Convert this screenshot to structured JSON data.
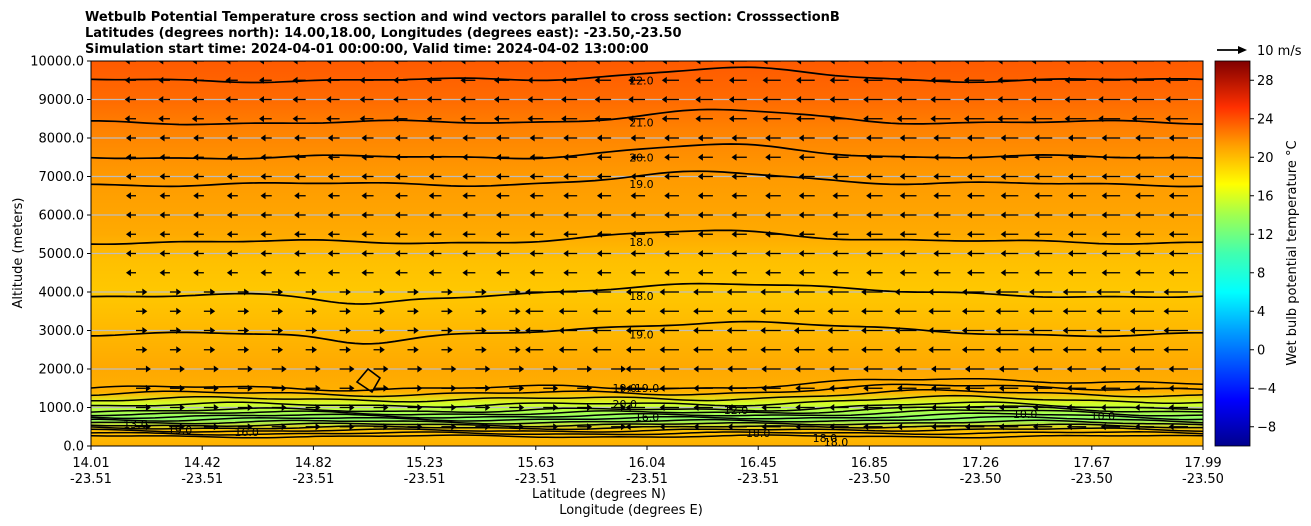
{
  "chart_data": {
    "type": "contour",
    "title_lines": [
      "Wetbulb Potential Temperature cross section and wind vectors parallel to cross section: CrosssectionB",
      "Latitudes (degrees north): 14.00,18.00, Longitudes (degrees east): -23.50,-23.50",
      "Simulation start time: 2024-04-01 00:00:00, Valid time: 2024-04-02 13:00:00"
    ],
    "ylabel": "Altitude (meters)",
    "xlabel_lat": "Latitude (degrees N)",
    "xlabel_lon": "Longitude (degrees E)",
    "ylim": [
      0,
      10000
    ],
    "yticks": [
      "0.0",
      "1000.0",
      "2000.0",
      "3000.0",
      "4000.0",
      "5000.0",
      "6000.0",
      "7000.0",
      "8000.0",
      "9000.0",
      "10000.0"
    ],
    "xticks_lat": [
      "14.01",
      "14.42",
      "14.82",
      "15.23",
      "15.63",
      "16.04",
      "16.45",
      "16.85",
      "17.26",
      "17.67",
      "17.99"
    ],
    "xticks_lon": [
      "-23.51",
      "-23.51",
      "-23.51",
      "-23.51",
      "-23.51",
      "-23.51",
      "-23.51",
      "-23.50",
      "-23.50",
      "-23.50",
      "-23.50"
    ],
    "colorbar": {
      "label": "Wet bulb potential temperature $^\\circ$C",
      "label_text": "Wet bulb potential temperature °C",
      "range": [
        -10,
        30
      ],
      "ticks": [
        "28",
        "24",
        "20",
        "16",
        "12",
        "8",
        "4",
        "0",
        "−4",
        "−8"
      ]
    },
    "quiver_key": "10 m/s",
    "contour_levels": [
      {
        "value": 22.0,
        "altitude_m": 9500,
        "label": "22.0"
      },
      {
        "value": 21.0,
        "altitude_m": 8400,
        "label": "21.0"
      },
      {
        "value": 20.0,
        "altitude_m": 7500,
        "label": "20.0"
      },
      {
        "value": 19.0,
        "altitude_m": 6800,
        "label": "19.0"
      },
      {
        "value": 18.0,
        "altitude_m": 5300,
        "label": "18.0"
      },
      {
        "value": 18.0,
        "altitude_m": 3900,
        "label": "18.0"
      },
      {
        "value": 19.0,
        "altitude_m": 2900,
        "label": "19.0"
      }
    ],
    "low_level_labels": [
      "19.0",
      "20.0",
      "19.0",
      "19.0",
      "16.0",
      "12.0",
      "10.0",
      "18.0",
      "18.0",
      "18.0",
      "13.0",
      "16.0",
      "10.0"
    ],
    "wind": {
      "upper_direction": "westward",
      "lower_direction": "eastward",
      "max_speed_ms": 10
    }
  }
}
